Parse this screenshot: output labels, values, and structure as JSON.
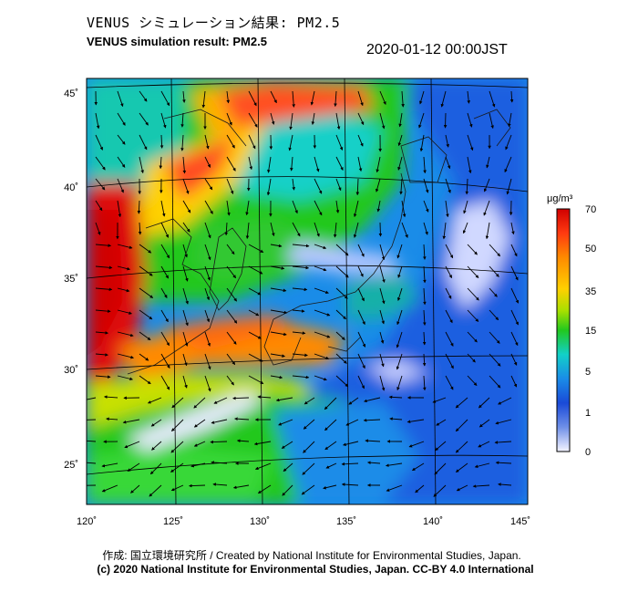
{
  "title_jp": "VENUS シミュレーション結果: PM2.5",
  "title_en": "VENUS simulation result: PM2.5",
  "timestamp": "2020-01-12 00:00JST",
  "map": {
    "lon_ticks": [
      "120˚",
      "125˚",
      "130˚",
      "135˚",
      "140˚",
      "145˚"
    ],
    "lat_ticks": [
      "45˚",
      "40˚",
      "35˚",
      "30˚",
      "25˚"
    ],
    "lon_range": [
      120,
      145
    ],
    "lat_range": [
      23,
      46
    ]
  },
  "colorbar": {
    "unit": "μg/m³",
    "labels": [
      "70",
      "50",
      "35",
      "15",
      "5",
      "1",
      "0"
    ],
    "colors": [
      "#d00000",
      "#ff3a10",
      "#ff8a00",
      "#ffd000",
      "#a8e000",
      "#22c81e",
      "#12d0c8",
      "#1a8ce8",
      "#1a4ad8",
      "#6f90e8",
      "#f4f4ff"
    ]
  },
  "credit_line1": "作成: 国立環境研究所 / Created by National Institute for Environmental Studies, Japan.",
  "credit_line2": "(c) 2020 National Institute for Environmental Studies, Japan. CC-BY 4.0 International"
}
